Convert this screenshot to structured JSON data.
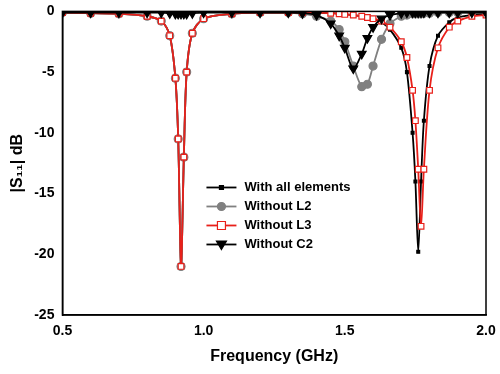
{
  "chart_data": {
    "type": "line",
    "x_label": "Frequency (GHz)",
    "y_label": "|S₁₁| dB",
    "x": [
      0.5,
      0.6,
      0.7,
      0.8,
      0.85,
      0.88,
      0.9,
      0.91,
      0.92,
      0.93,
      0.94,
      0.96,
      1.0,
      1.1,
      1.2,
      1.3,
      1.35,
      1.4,
      1.45,
      1.48,
      1.5,
      1.53,
      1.56,
      1.58,
      1.6,
      1.63,
      1.66,
      1.7,
      1.72,
      1.74,
      1.75,
      1.76,
      1.77,
      1.78,
      1.8,
      1.83,
      1.87,
      1.9,
      1.95,
      2.0
    ],
    "series": [
      {
        "name": "With all elements",
        "color": "#000000",
        "marker": "square",
        "values": [
          -0.1,
          -0.15,
          -0.2,
          -0.4,
          -0.8,
          -2,
          -5.5,
          -10.5,
          -21,
          -12,
          -5,
          -1.8,
          -0.6,
          -0.2,
          -0.1,
          -0.1,
          -0.1,
          -0.1,
          -0.15,
          -0.2,
          -0.25,
          -0.3,
          -0.4,
          -0.5,
          -0.6,
          -0.9,
          -1.5,
          -3,
          -5,
          -10,
          -14,
          -19.8,
          -14,
          -9,
          -4.5,
          -2,
          -0.9,
          -0.5,
          -0.3,
          -0.2
        ]
      },
      {
        "name": "Without L2",
        "color": "#808080",
        "marker": "circle",
        "values": [
          -0.1,
          -0.15,
          -0.2,
          -0.4,
          -0.8,
          -2,
          -5.5,
          -10.5,
          -21,
          -12,
          -5,
          -1.8,
          -0.6,
          -0.2,
          -0.1,
          -0.1,
          -0.2,
          -0.4,
          -0.8,
          -1.5,
          -2.5,
          -4.5,
          -6.2,
          -6,
          -4.5,
          -2.3,
          -1,
          -0.4,
          -0.3,
          -0.2,
          -0.2,
          -0.2,
          -0.2,
          -0.15,
          -0.15,
          -0.1,
          -0.1,
          -0.1,
          -0.1,
          -0.1
        ]
      },
      {
        "name": "Without L3",
        "color": "#e8201a",
        "marker": "square-open",
        "values": [
          -0.1,
          -0.15,
          -0.2,
          -0.4,
          -0.8,
          -2,
          -5.5,
          -10.5,
          -21,
          -12,
          -5,
          -1.8,
          -0.6,
          -0.2,
          -0.1,
          -0.1,
          -0.1,
          -0.1,
          -0.15,
          -0.2,
          -0.25,
          -0.3,
          -0.4,
          -0.5,
          -0.6,
          -0.8,
          -1.3,
          -2.5,
          -3.8,
          -6.5,
          -9,
          -13,
          -17.7,
          -13,
          -6.5,
          -3,
          -1.3,
          -0.8,
          -0.4,
          -0.3
        ]
      },
      {
        "name": "Without C2",
        "color": "#000000",
        "marker": "triangle-down",
        "values": [
          -0.1,
          -0.1,
          -0.1,
          -0.1,
          -0.1,
          -0.15,
          -0.2,
          -0.2,
          -0.2,
          -0.2,
          -0.2,
          -0.15,
          -0.1,
          -0.1,
          -0.1,
          -0.1,
          -0.15,
          -0.3,
          -1,
          -2,
          -3,
          -4.7,
          -3.5,
          -2.2,
          -1.3,
          -0.6,
          -0.3,
          -0.15,
          -0.1,
          -0.1,
          -0.1,
          -0.1,
          -0.1,
          -0.1,
          -0.1,
          -0.1,
          -0.1,
          -0.1,
          -0.1,
          -0.1
        ]
      }
    ],
    "xlim": [
      0.5,
      2.0
    ],
    "xticks": [
      {
        "value": 0.5,
        "label": "0.5"
      },
      {
        "value": 1.0,
        "label": "1.0"
      },
      {
        "value": 1.5,
        "label": "1.5"
      },
      {
        "value": 2.0,
        "label": "2.0"
      }
    ],
    "ylim": [
      -25,
      0
    ],
    "yticks": [
      -25,
      -20,
      -15,
      -10,
      -5,
      0
    ],
    "grid": false,
    "legend": "center"
  }
}
